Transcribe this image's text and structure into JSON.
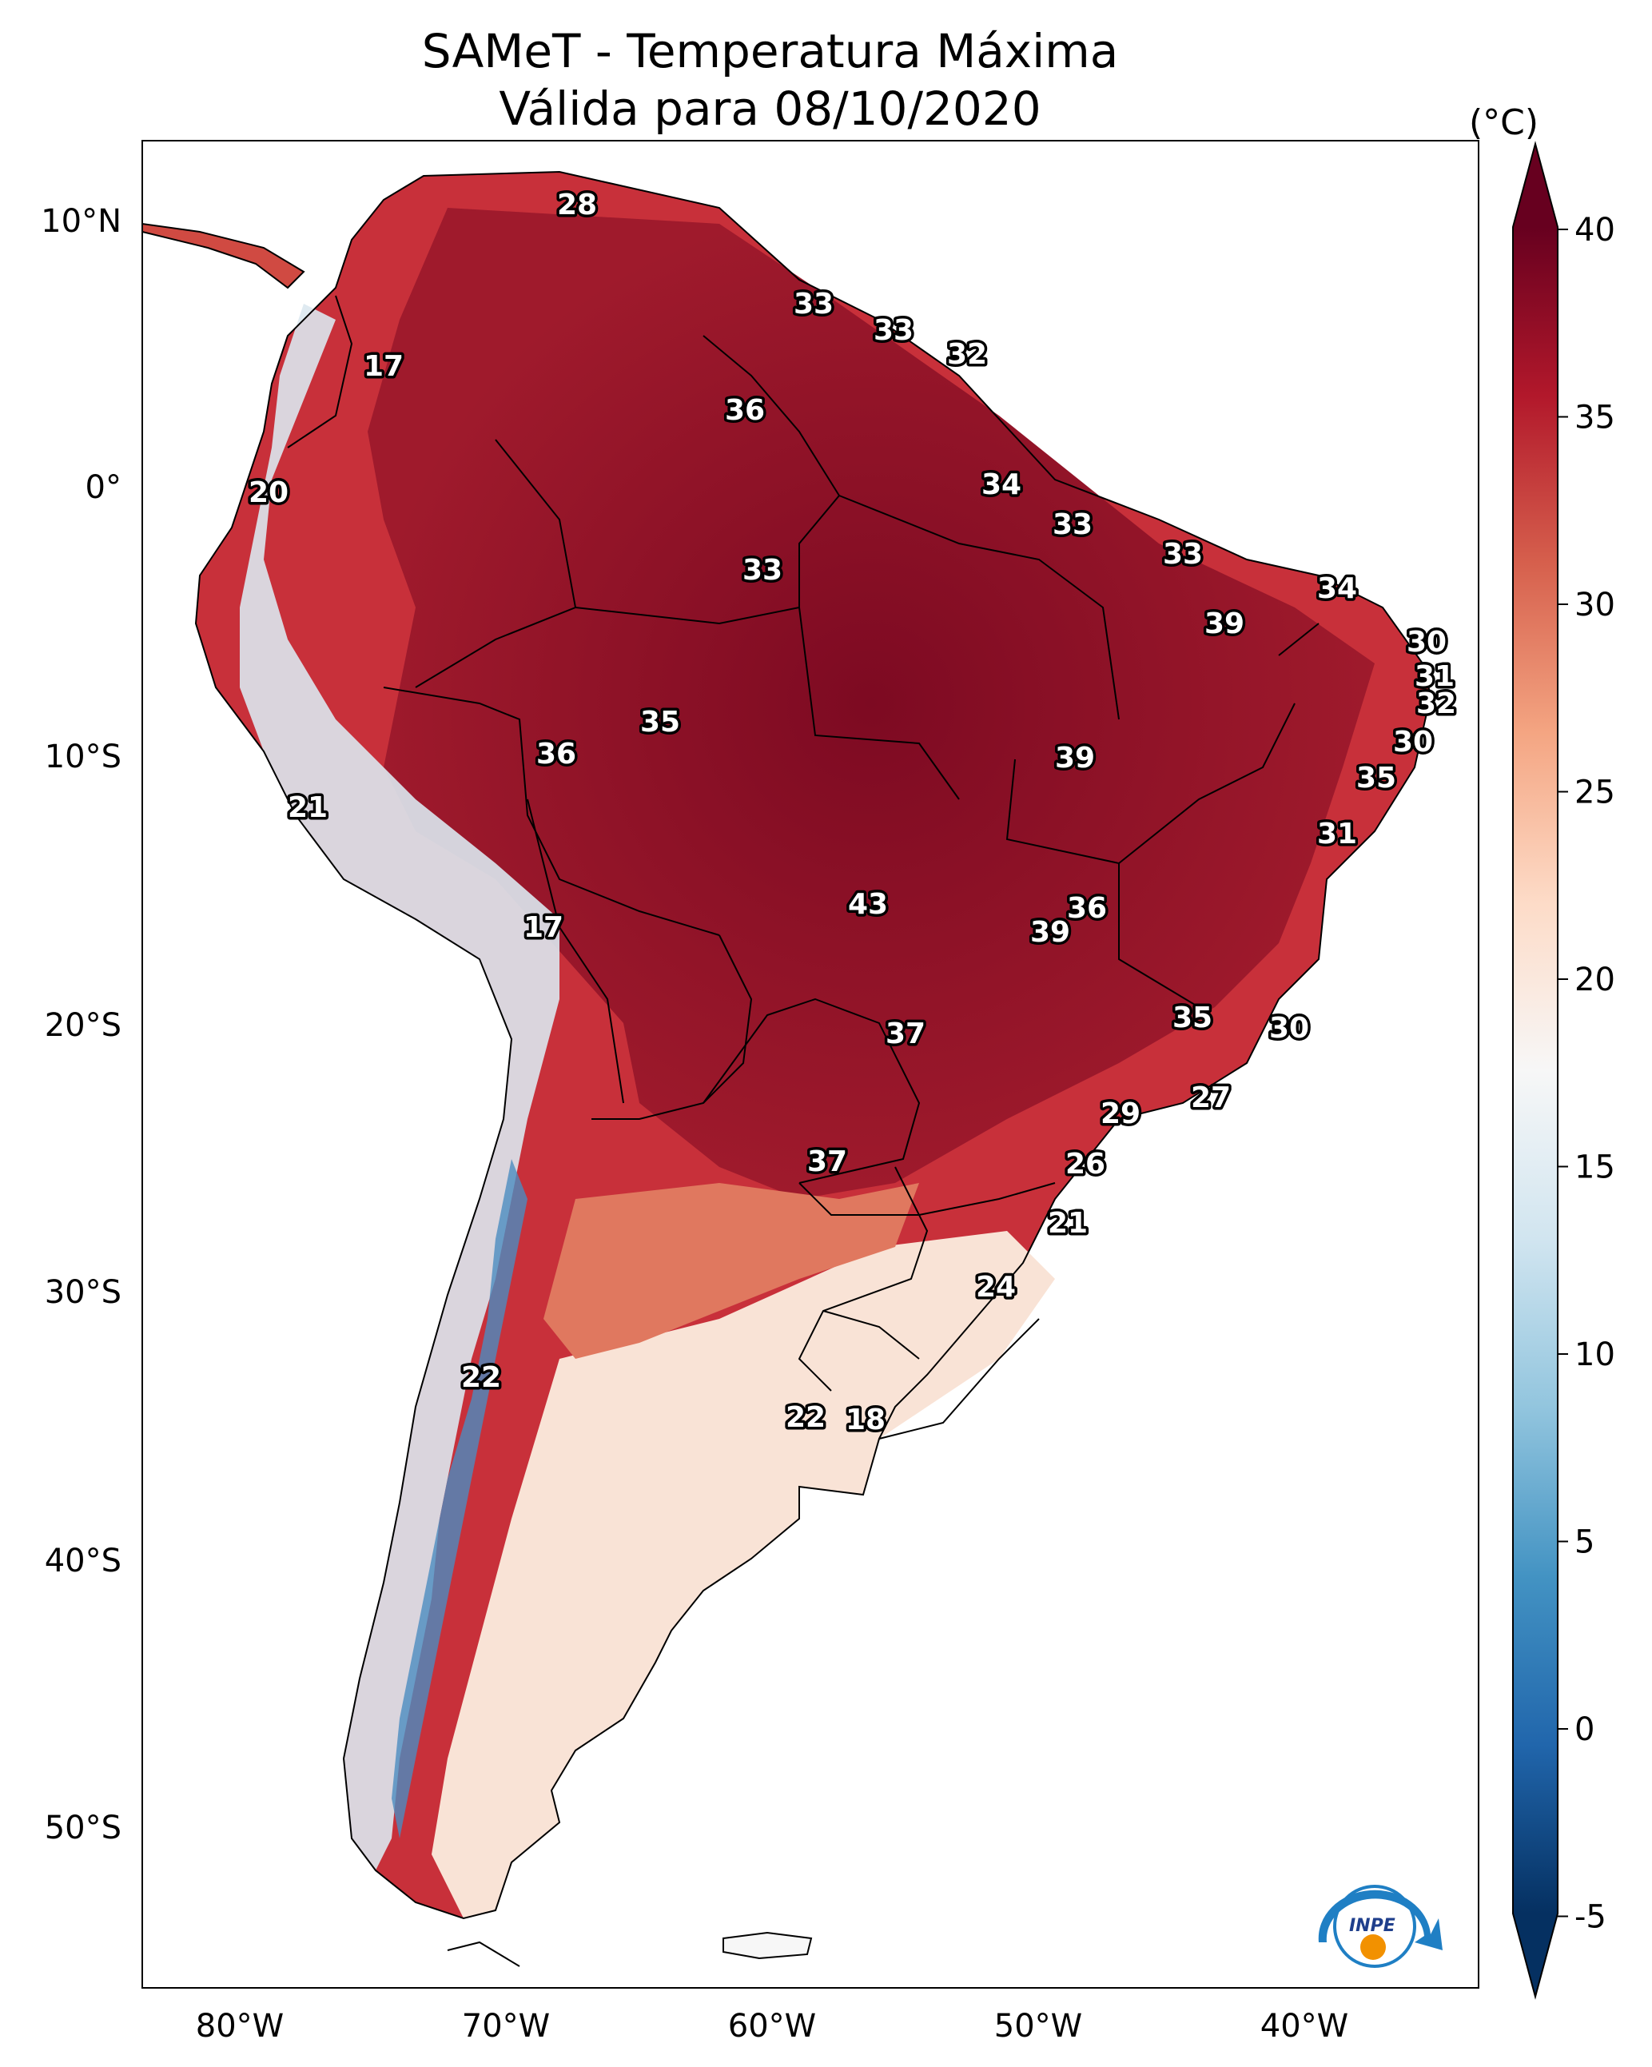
{
  "title": {
    "line1": "SAMeT - Temperatura Máxima",
    "line2": "Válida para 08/10/2020"
  },
  "colorbar": {
    "unit": "(°C)",
    "ticks": [
      "40",
      "35",
      "30",
      "25",
      "20",
      "15",
      "10",
      "5",
      "0",
      "-5"
    ],
    "colors": [
      "#053061",
      "#2166ac",
      "#4393c3",
      "#92c5de",
      "#d1e5f0",
      "#f7f7f7",
      "#fddbc7",
      "#f4a582",
      "#d6604d",
      "#b2182b",
      "#67001f"
    ]
  },
  "axes": {
    "lon_ticks": [
      "80°W",
      "70°W",
      "60°W",
      "50°W",
      "40°W"
    ],
    "lat_ticks": [
      "10°N",
      "0°",
      "10°S",
      "20°S",
      "30°S",
      "40°S",
      "50°S"
    ]
  },
  "labels": [
    "28",
    "33",
    "33",
    "32",
    "17",
    "36",
    "20",
    "34",
    "33",
    "33",
    "33",
    "34",
    "39",
    "30",
    "31",
    "32",
    "35",
    "36",
    "39",
    "30",
    "21",
    "35",
    "31",
    "43",
    "36",
    "17",
    "39",
    "37",
    "35",
    "30",
    "27",
    "29",
    "37",
    "26",
    "21",
    "24",
    "22",
    "22",
    "18"
  ],
  "logo": {
    "text": "INPE"
  }
}
